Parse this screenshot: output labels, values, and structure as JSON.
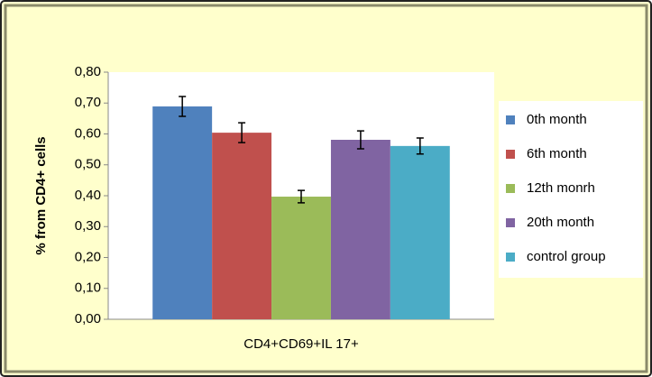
{
  "chart_data": {
    "type": "bar",
    "y_label": "% from CD4+ cells",
    "categories": [
      "CD4+CD69+IL 17+"
    ],
    "series": [
      {
        "name": "0th month",
        "color": "#4f81bd",
        "values": [
          0.689
        ],
        "errors": [
          0.032
        ]
      },
      {
        "name": "6th month",
        "color": "#c0504d",
        "values": [
          0.604
        ],
        "errors": [
          0.032
        ]
      },
      {
        "name": "12th monrh",
        "color": "#9bbb59",
        "values": [
          0.397
        ],
        "errors": [
          0.02
        ]
      },
      {
        "name": "20th month",
        "color": "#8064a2",
        "values": [
          0.581
        ],
        "errors": [
          0.029
        ]
      },
      {
        "name": "control group",
        "color": "#4bacc6",
        "values": [
          0.561
        ],
        "errors": [
          0.026
        ]
      }
    ],
    "ylim": [
      0,
      0.8
    ],
    "yticks": [
      {
        "value": 0,
        "label": "0,00"
      },
      {
        "value": 0.1,
        "label": "0,10"
      },
      {
        "value": 0.2,
        "label": "0,20"
      },
      {
        "value": 0.3,
        "label": "0,30"
      },
      {
        "value": 0.4,
        "label": "0,40"
      },
      {
        "value": 0.5,
        "label": "0,50"
      },
      {
        "value": 0.6,
        "label": "0,60"
      },
      {
        "value": 0.7,
        "label": "0,70"
      },
      {
        "value": 0.8,
        "label": "0,80"
      }
    ],
    "grid": false,
    "legend": "right"
  }
}
